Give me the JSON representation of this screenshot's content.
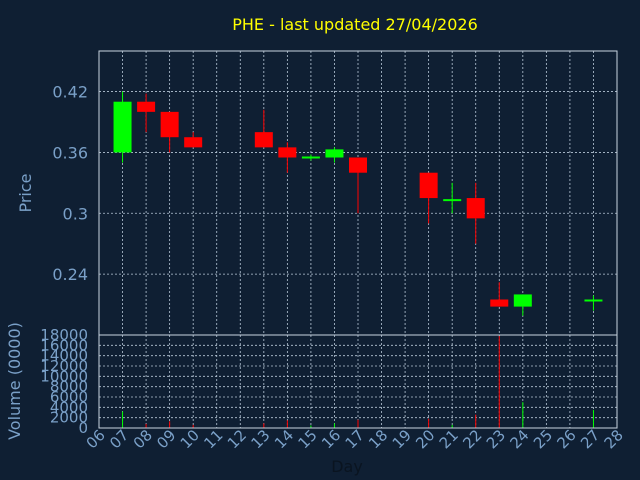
{
  "chart_data": {
    "type": "candlestick",
    "title": "PHE - last updated 27/04/2026",
    "xlabel": "Day",
    "price_panel": {
      "ylabel": "Price",
      "ylim": [
        0.18,
        0.46
      ],
      "yticks": [
        "0.42",
        "0.36",
        "0.3",
        "0.24"
      ]
    },
    "volume_panel": {
      "ylabel": "Volume (0000)",
      "ylim": [
        0,
        18000
      ],
      "yticks": [
        "18000",
        "16000",
        "14000",
        "12000",
        "10000",
        "8000",
        "6000",
        "4000",
        "2000",
        "0"
      ]
    },
    "x_ticks": [
      "06",
      "07",
      "08",
      "09",
      "10",
      "11",
      "12",
      "13",
      "14",
      "15",
      "16",
      "17",
      "18",
      "19",
      "20",
      "21",
      "22",
      "23",
      "24",
      "25",
      "26",
      "27",
      "28"
    ],
    "grid": true,
    "colors": {
      "up": "#00ff00",
      "down": "#ff0000",
      "background": "#0f1f33",
      "title": "#ffff00",
      "text": "#7aa0c8"
    },
    "candles": [
      {
        "day": 7,
        "open": 0.36,
        "high": 0.42,
        "low": 0.35,
        "close": 0.41,
        "volume": 3200
      },
      {
        "day": 8,
        "open": 0.41,
        "high": 0.418,
        "low": 0.38,
        "close": 0.4,
        "volume": 800
      },
      {
        "day": 9,
        "open": 0.4,
        "high": 0.4,
        "low": 0.36,
        "close": 0.375,
        "volume": 1300
      },
      {
        "day": 10,
        "open": 0.375,
        "high": 0.38,
        "low": 0.365,
        "close": 0.365,
        "volume": 600
      },
      {
        "day": 13,
        "open": 0.38,
        "high": 0.402,
        "low": 0.365,
        "close": 0.365,
        "volume": 900
      },
      {
        "day": 14,
        "open": 0.365,
        "high": 0.37,
        "low": 0.34,
        "close": 0.355,
        "volume": 1500
      },
      {
        "day": 15,
        "open": 0.355,
        "high": 0.358,
        "low": 0.352,
        "close": 0.355,
        "volume": 500
      },
      {
        "day": 16,
        "open": 0.355,
        "high": 0.365,
        "low": 0.35,
        "close": 0.363,
        "volume": 900
      },
      {
        "day": 17,
        "open": 0.355,
        "high": 0.355,
        "low": 0.3,
        "close": 0.34,
        "volume": 1600
      },
      {
        "day": 20,
        "open": 0.34,
        "high": 0.34,
        "low": 0.29,
        "close": 0.315,
        "volume": 1800
      },
      {
        "day": 21,
        "open": 0.313,
        "high": 0.33,
        "low": 0.3,
        "close": 0.313,
        "volume": 600
      },
      {
        "day": 22,
        "open": 0.315,
        "high": 0.33,
        "low": 0.27,
        "close": 0.295,
        "volume": 2600
      },
      {
        "day": 23,
        "open": 0.215,
        "high": 0.232,
        "low": 0.208,
        "close": 0.208,
        "volume": 17800
      },
      {
        "day": 24,
        "open": 0.208,
        "high": 0.22,
        "low": 0.199,
        "close": 0.22,
        "volume": 5000
      },
      {
        "day": 27,
        "open": 0.214,
        "high": 0.219,
        "low": 0.204,
        "close": 0.214,
        "volume": 3500
      }
    ]
  }
}
